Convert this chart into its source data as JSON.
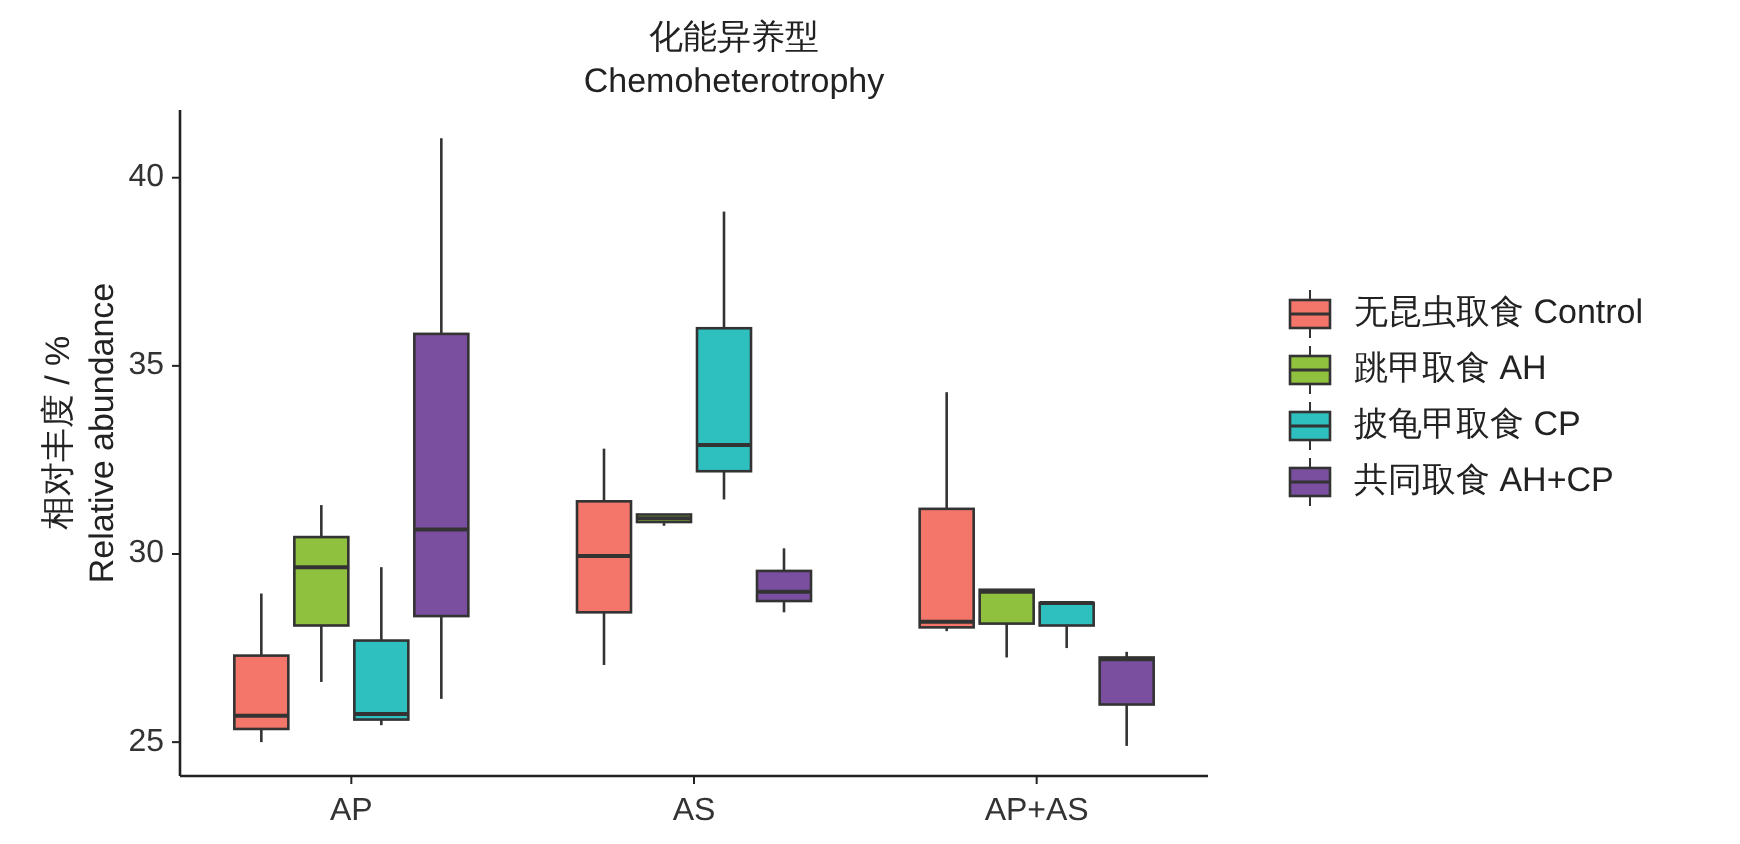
{
  "chart_data": {
    "type": "box",
    "title": "化能异养型\nChemoheterotrophy",
    "ylabel": "相对丰度 / %\nRelative abundance",
    "categories": [
      "AP",
      "AS",
      "AP+AS"
    ],
    "ylim": [
      24.1,
      41.8
    ],
    "yticks": [
      25,
      30,
      35,
      40
    ],
    "grid": false,
    "legend": "right",
    "series": [
      {
        "name": "无昆虫取食 Control",
        "color": "#f4766a",
        "boxes": [
          {
            "low": 25.0,
            "q1": 25.35,
            "median": 25.7,
            "q3": 27.3,
            "high": 28.95
          },
          {
            "low": 27.05,
            "q1": 28.45,
            "median": 29.95,
            "q3": 31.4,
            "high": 32.8
          },
          {
            "low": 27.95,
            "q1": 28.05,
            "median": 28.2,
            "q3": 31.2,
            "high": 34.3
          }
        ]
      },
      {
        "name": "跳甲取食 AH",
        "color": "#8fc03e",
        "boxes": [
          {
            "low": 26.6,
            "q1": 28.1,
            "median": 29.65,
            "q3": 30.45,
            "high": 31.3
          },
          {
            "low": 30.75,
            "q1": 30.85,
            "median": 30.95,
            "q3": 31.05,
            "high": 31.05
          },
          {
            "low": 27.25,
            "q1": 28.15,
            "median": 29.0,
            "q3": 29.05,
            "high": 29.05
          }
        ]
      },
      {
        "name": "披龟甲取食 CP",
        "color": "#2ebfbf",
        "boxes": [
          {
            "low": 25.45,
            "q1": 25.6,
            "median": 25.75,
            "q3": 27.7,
            "high": 29.65
          },
          {
            "low": 31.45,
            "q1": 32.2,
            "median": 32.9,
            "q3": 36.0,
            "high": 39.1
          },
          {
            "low": 27.5,
            "q1": 28.1,
            "median": 28.7,
            "q3": 28.7,
            "high": 28.75
          }
        ]
      },
      {
        "name": "共同取食 AH+CP",
        "color": "#7b4fa0",
        "boxes": [
          {
            "low": 26.15,
            "q1": 28.35,
            "median": 30.65,
            "q3": 35.85,
            "high": 41.05
          },
          {
            "low": 28.45,
            "q1": 28.75,
            "median": 29.0,
            "q3": 29.55,
            "high": 30.15
          },
          {
            "low": 24.9,
            "q1": 26.0,
            "median": 27.2,
            "q3": 27.25,
            "high": 27.4
          }
        ]
      }
    ]
  }
}
